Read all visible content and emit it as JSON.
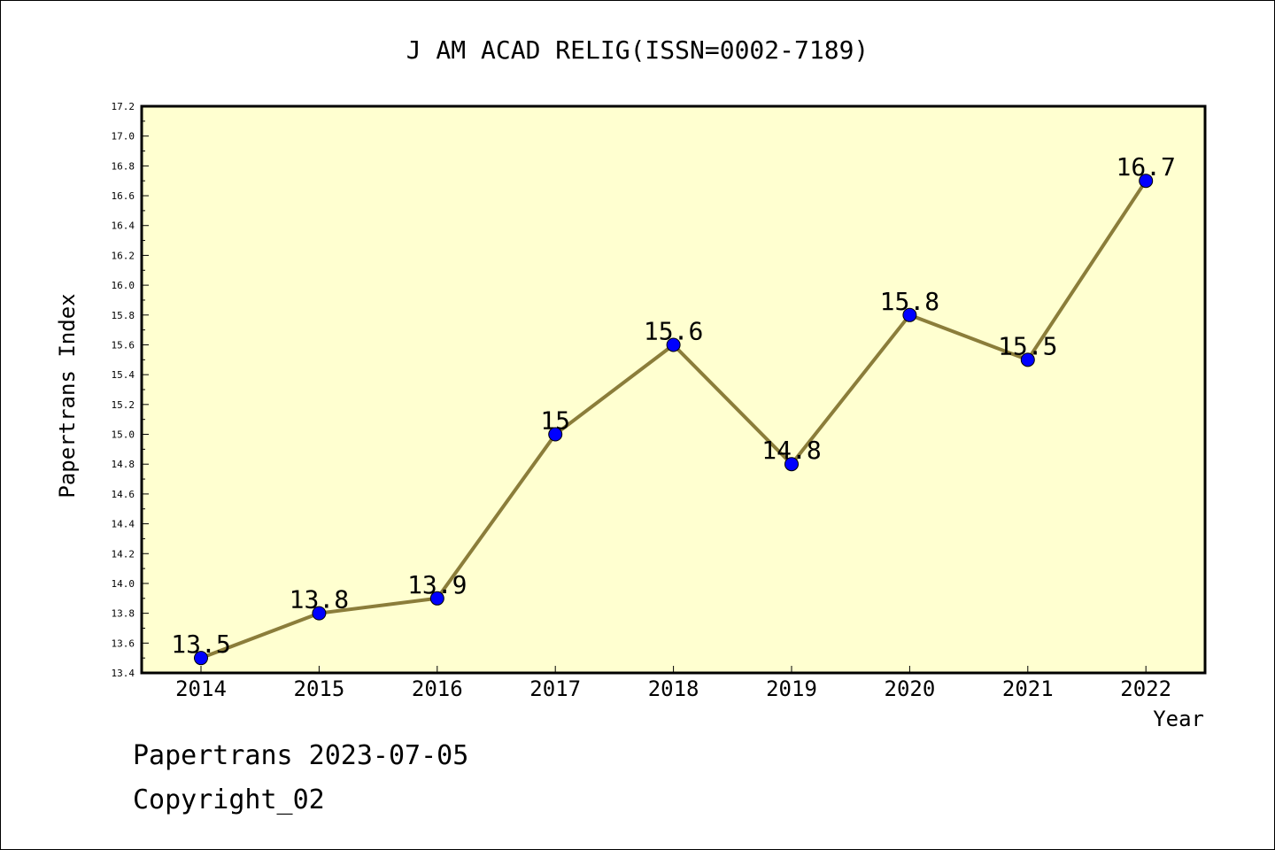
{
  "chart_data": {
    "type": "line",
    "title": "J AM ACAD RELIG(ISSN=0002-7189)",
    "xlabel": "Year",
    "ylabel": "Papertrans Index",
    "ylim": [
      13.4,
      17.2
    ],
    "yticks": [
      "13.4",
      "13.6",
      "13.8",
      "14.0",
      "14.2",
      "14.4",
      "14.6",
      "14.8",
      "15.0",
      "15.2",
      "15.4",
      "15.6",
      "15.8",
      "16.0",
      "16.2",
      "16.4",
      "16.6",
      "16.8",
      "17.0",
      "17.2"
    ],
    "grid": false,
    "x": [
      "2014",
      "2015",
      "2016",
      "2017",
      "2018",
      "2019",
      "2020",
      "2021",
      "2022"
    ],
    "series": [
      {
        "values": [
          13.5,
          13.8,
          13.9,
          15,
          15.6,
          14.8,
          15.8,
          15.5,
          16.7
        ],
        "labels": [
          "13.5",
          "13.8",
          "13.9",
          "15",
          "15.6",
          "14.8",
          "15.8",
          "15.5",
          "16.7"
        ],
        "line_color": "#8b7d3a",
        "marker_color": "#0000ff"
      }
    ],
    "plot_background": "#ffffd0"
  },
  "footer": {
    "date_line": "Papertrans 2023-07-05",
    "copyright": "Copyright_02"
  }
}
